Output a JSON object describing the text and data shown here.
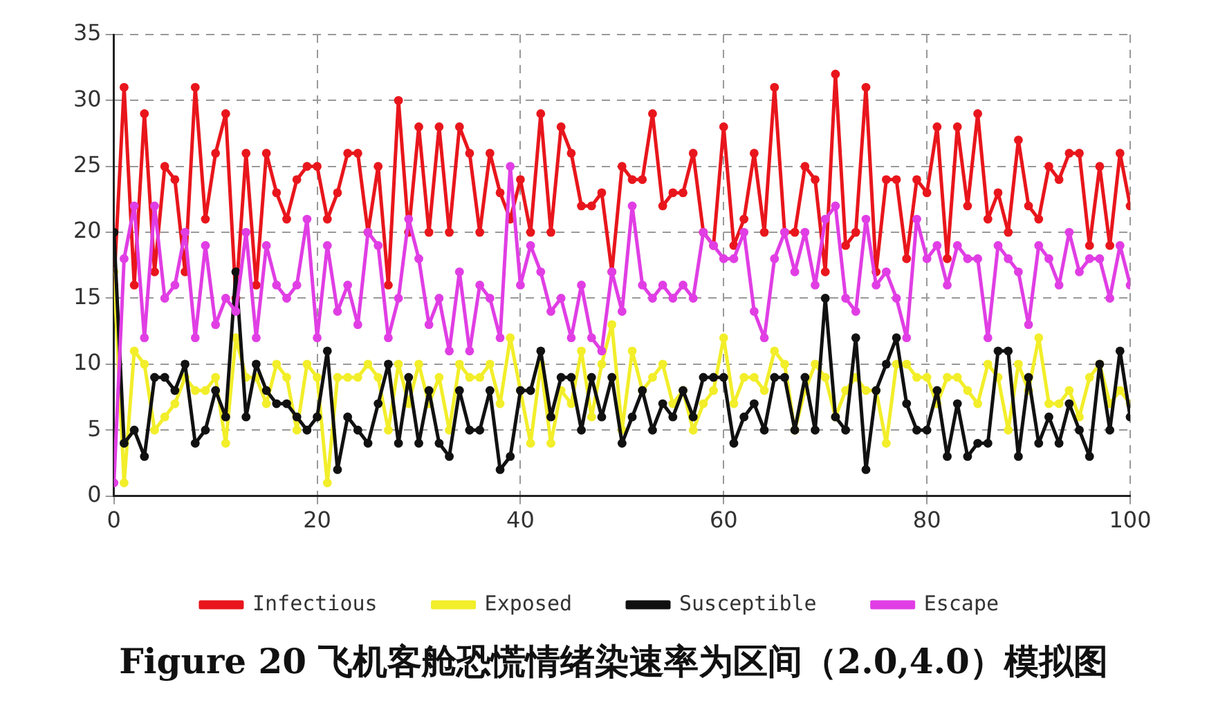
{
  "chart_data": {
    "type": "line",
    "title": "Figure 20 飞机客舱恐慌情绪染速率为区间（2.0,4.0）模拟图",
    "x": [
      0,
      1,
      2,
      3,
      4,
      5,
      6,
      7,
      8,
      9,
      10,
      11,
      12,
      13,
      14,
      15,
      16,
      17,
      18,
      19,
      20,
      21,
      22,
      23,
      24,
      25,
      26,
      27,
      28,
      29,
      30,
      31,
      32,
      33,
      34,
      35,
      36,
      37,
      38,
      39,
      40,
      41,
      42,
      43,
      44,
      45,
      46,
      47,
      48,
      49,
      50,
      51,
      52,
      53,
      54,
      55,
      56,
      57,
      58,
      59,
      60,
      61,
      62,
      63,
      64,
      65,
      66,
      67,
      68,
      69,
      70,
      71,
      72,
      73,
      74,
      75,
      76,
      77,
      78,
      79,
      80,
      81,
      82,
      83,
      84,
      85,
      86,
      87,
      88,
      89,
      90,
      91,
      92,
      93,
      94,
      95,
      96,
      97,
      98,
      99,
      100
    ],
    "series": [
      {
        "name": "Infectious",
        "color": "#e8161c",
        "values": [
          16,
          31,
          16,
          29,
          17,
          25,
          24,
          17,
          31,
          21,
          26,
          29,
          15,
          26,
          16,
          26,
          23,
          21,
          24,
          25,
          25,
          21,
          23,
          26,
          26,
          20,
          25,
          16,
          30,
          20,
          28,
          20,
          28,
          20,
          28,
          26,
          20,
          26,
          23,
          21,
          24,
          20,
          29,
          20,
          28,
          26,
          22,
          22,
          23,
          17,
          25,
          24,
          24,
          29,
          22,
          23,
          23,
          26,
          20,
          19,
          28,
          19,
          21,
          26,
          20,
          31,
          20,
          20,
          25,
          24,
          17,
          32,
          19,
          20,
          31,
          17,
          24,
          24,
          18,
          24,
          23,
          28,
          18,
          28,
          22,
          29,
          21,
          23,
          20,
          27,
          22,
          21,
          25,
          24,
          26,
          26,
          19,
          25,
          19,
          26,
          22
        ]
      },
      {
        "name": "Exposed",
        "color": "#f2ee2a",
        "values": [
          17,
          1,
          11,
          10,
          5,
          6,
          7,
          9,
          8,
          8,
          9,
          4,
          12,
          9,
          9,
          7,
          10,
          9,
          5,
          10,
          9,
          1,
          9,
          9,
          9,
          10,
          9,
          5,
          10,
          7,
          10,
          7,
          9,
          5,
          10,
          9,
          9,
          10,
          7,
          12,
          8,
          4,
          10,
          4,
          8,
          7,
          11,
          6,
          10,
          13,
          5,
          11,
          8,
          9,
          10,
          7,
          8,
          5,
          7,
          8,
          12,
          7,
          9,
          9,
          8,
          11,
          10,
          5,
          8,
          10,
          9,
          6,
          8,
          9,
          8,
          8,
          4,
          10,
          10,
          9,
          9,
          7,
          9,
          9,
          8,
          7,
          10,
          9,
          5,
          10,
          8,
          12,
          7,
          7,
          8,
          6,
          9,
          10,
          7,
          8,
          7
        ]
      },
      {
        "name": "Susceptible",
        "color": "#111111",
        "values": [
          20,
          4,
          5,
          3,
          9,
          9,
          8,
          10,
          4,
          5,
          8,
          6,
          17,
          6,
          10,
          8,
          7,
          7,
          6,
          5,
          6,
          11,
          2,
          6,
          5,
          4,
          7,
          10,
          4,
          9,
          4,
          8,
          4,
          3,
          8,
          5,
          5,
          8,
          2,
          3,
          8,
          8,
          11,
          6,
          9,
          9,
          5,
          9,
          6,
          9,
          4,
          6,
          8,
          5,
          7,
          6,
          8,
          6,
          9,
          9,
          9,
          4,
          6,
          7,
          5,
          9,
          9,
          5,
          9,
          5,
          15,
          6,
          5,
          12,
          2,
          8,
          10,
          12,
          7,
          5,
          5,
          8,
          3,
          7,
          3,
          4,
          4,
          11,
          11,
          3,
          9,
          4,
          6,
          4,
          7,
          5,
          3,
          10,
          5,
          11,
          6
        ]
      },
      {
        "name": "Escape",
        "color": "#e03ee4",
        "values": [
          1,
          18,
          22,
          12,
          22,
          15,
          16,
          20,
          12,
          19,
          13,
          15,
          14,
          20,
          12,
          19,
          16,
          15,
          16,
          21,
          12,
          19,
          14,
          16,
          13,
          20,
          19,
          12,
          15,
          21,
          18,
          13,
          15,
          11,
          17,
          11,
          16,
          15,
          12,
          25,
          16,
          19,
          17,
          14,
          15,
          12,
          16,
          12,
          11,
          17,
          14,
          22,
          16,
          15,
          16,
          15,
          16,
          15,
          20,
          19,
          18,
          18,
          20,
          14,
          12,
          18,
          20,
          17,
          20,
          16,
          21,
          22,
          15,
          14,
          21,
          16,
          17,
          15,
          12,
          21,
          18,
          19,
          16,
          19,
          18,
          18,
          12,
          19,
          18,
          17,
          13,
          19,
          18,
          16,
          20,
          17,
          18,
          18,
          15,
          19,
          16
        ]
      }
    ],
    "xlim": [
      0,
      100
    ],
    "xticks": [
      0,
      20,
      40,
      60,
      80,
      100
    ],
    "ylim": [
      0,
      35
    ],
    "yticks": [
      0,
      5,
      10,
      15,
      20,
      25,
      30,
      35
    ],
    "grid": true,
    "legend": "bottom",
    "marker": "circle",
    "line_style": "solid"
  }
}
